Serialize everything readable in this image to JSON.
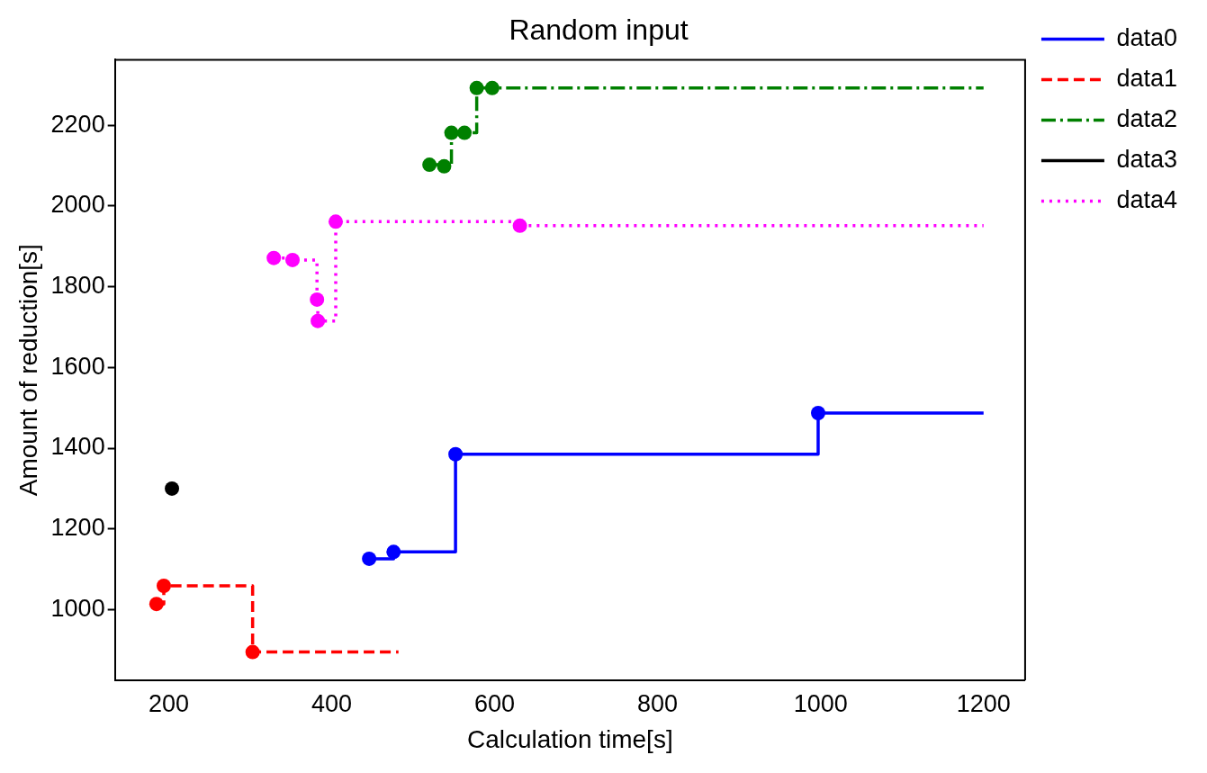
{
  "chart_data": {
    "type": "step",
    "title": "Random input",
    "xlabel": "Calculation time[s]",
    "ylabel": "Amount of reduction[s]",
    "xlim": [
      134,
      1251
    ],
    "xticks": [
      200,
      400,
      600,
      800,
      1000,
      1200
    ],
    "ylim": [
      825,
      2362
    ],
    "yticks": [
      1000,
      1200,
      1400,
      1600,
      1800,
      2000,
      2200
    ],
    "grid": false,
    "legend": "right",
    "series": [
      {
        "name": "data0",
        "type": "step",
        "color": "#0000ff",
        "line_style": "solid",
        "marker": "none",
        "x": [
          446,
          476,
          552,
          997,
          1200
        ],
        "values": [
          1126,
          1143,
          1385,
          1487,
          1487
        ]
      },
      {
        "name": "data1",
        "type": "step",
        "color": "#ff0000",
        "line_style": "dashed",
        "marker": "none",
        "x": [
          185,
          194,
          303,
          482
        ],
        "values": [
          1014,
          1059,
          895,
          895
        ]
      },
      {
        "name": "data2",
        "type": "step",
        "color": "#008000",
        "line_style": "dashdot",
        "marker": "none",
        "x": [
          520,
          538,
          547,
          563,
          578,
          597,
          1200
        ],
        "values": [
          2102,
          2098,
          2181,
          2181,
          2292,
          2292,
          2292
        ]
      },
      {
        "name": "data3",
        "type": "step",
        "color": "#000000",
        "line_style": "solid",
        "marker": "circle",
        "x": [
          204
        ],
        "values": [
          1300
        ]
      },
      {
        "name": "data4",
        "type": "step",
        "color": "#ff00ff",
        "line_style": "dotted",
        "marker": "none",
        "x": [
          329,
          352,
          382,
          383,
          405,
          631,
          1200
        ],
        "values": [
          1871,
          1866,
          1768,
          1715,
          1961,
          1951,
          1951
        ]
      },
      {
        "type": "scatter",
        "color": "#0000ff",
        "marker": "circle",
        "x": [
          446,
          476,
          552,
          997
        ],
        "values": [
          1126,
          1143,
          1385,
          1487
        ]
      },
      {
        "type": "scatter",
        "color": "#ff0000",
        "marker": "circle",
        "x": [
          185,
          194,
          303
        ],
        "values": [
          1014,
          1059,
          895
        ]
      },
      {
        "type": "scatter",
        "color": "#008000",
        "marker": "circle",
        "x": [
          520,
          538,
          547,
          563,
          578,
          597
        ],
        "values": [
          2102,
          2098,
          2181,
          2181,
          2292,
          2292
        ]
      },
      {
        "type": "scatter",
        "color": "#ff00ff",
        "marker": "circle",
        "x": [
          329,
          352,
          382,
          383,
          405,
          631
        ],
        "values": [
          1871,
          1866,
          1768,
          1715,
          1961,
          1951
        ]
      }
    ]
  }
}
